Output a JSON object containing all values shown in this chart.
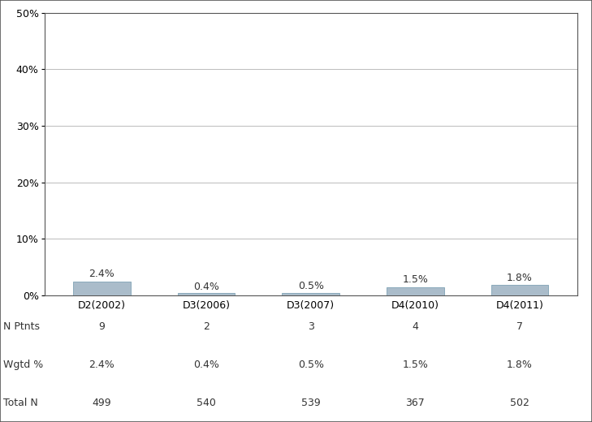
{
  "categories": [
    "D2(2002)",
    "D3(2006)",
    "D3(2007)",
    "D4(2010)",
    "D4(2011)"
  ],
  "values": [
    2.4,
    0.4,
    0.5,
    1.5,
    1.8
  ],
  "bar_color_face": "#aabcca",
  "bar_color_edge": "#8aaabb",
  "bar_width": 0.55,
  "ylim": [
    0,
    50
  ],
  "yticks": [
    0,
    10,
    20,
    30,
    40,
    50
  ],
  "ytick_labels": [
    "0%",
    "10%",
    "20%",
    "30%",
    "40%",
    "50%"
  ],
  "value_labels": [
    "2.4%",
    "0.4%",
    "0.5%",
    "1.5%",
    "1.8%"
  ],
  "n_ptnts": [
    9,
    2,
    3,
    4,
    7
  ],
  "wgtd_pct": [
    "2.4%",
    "0.4%",
    "0.5%",
    "1.5%",
    "1.8%"
  ],
  "total_n": [
    499,
    540,
    539,
    367,
    502
  ],
  "row_labels": [
    "N Ptnts",
    "Wgtd %",
    "Total N"
  ],
  "background_color": "#ffffff",
  "grid_color": "#bbbbbb",
  "border_color": "#555555",
  "font_size_ticks": 9,
  "font_size_table": 9,
  "font_size_bar_label": 9
}
